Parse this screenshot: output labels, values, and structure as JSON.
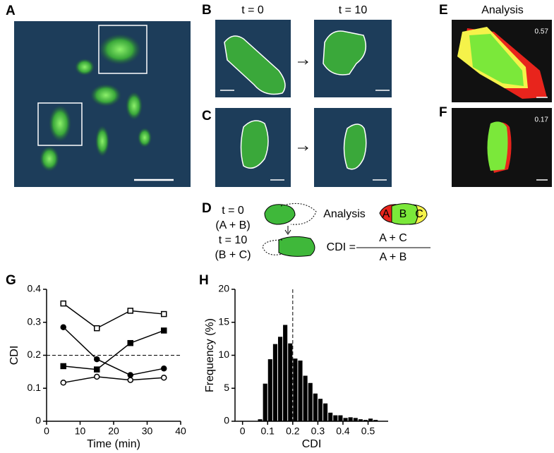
{
  "panel_labels": [
    "A",
    "B",
    "C",
    "D",
    "E",
    "F",
    "G",
    "H"
  ],
  "time_labels": [
    "t = 0",
    "t = 10"
  ],
  "analysis_title": "Analysis",
  "overlap_values": [
    0.57,
    0.17
  ],
  "diagram": {
    "t0": "t = 0",
    "ab": "(A + B)",
    "t10": "t = 10",
    "bc": "(B + C)",
    "analysis": "Analysis",
    "region_a": "A",
    "region_b": "B",
    "region_c": "C",
    "cdi": "CDI =",
    "numerator": "A + C",
    "denominator": "A + B"
  },
  "chart_data": [
    {
      "type": "line",
      "xlabel": "Time (min)",
      "ylabel": "CDI",
      "x": [
        5,
        15,
        25,
        35
      ],
      "series": [
        {
          "color": "#000000",
          "marker": "square",
          "filled": false,
          "values": [
            0.357,
            0.282,
            0.335,
            0.325
          ]
        },
        {
          "color": "#000000",
          "marker": "square",
          "filled": true,
          "values": [
            0.167,
            0.157,
            0.237,
            0.275
          ]
        },
        {
          "color": "#000000",
          "marker": "circle",
          "filled": true,
          "values": [
            0.285,
            0.188,
            0.14,
            0.16
          ]
        },
        {
          "color": "#000000",
          "marker": "circle",
          "filled": false,
          "values": [
            0.117,
            0.135,
            0.125,
            0.132
          ]
        }
      ],
      "hline": 0.2,
      "xlim": [
        0,
        40
      ],
      "xticks": [
        0,
        10,
        20,
        30,
        40
      ],
      "ylim": [
        0,
        0.4
      ],
      "yticks": [
        0,
        0.1,
        0.2,
        0.3,
        0.4
      ]
    },
    {
      "type": "histogram",
      "xlabel": "CDI",
      "ylabel": "Frequency (%)",
      "color": "#000000",
      "bins": [
        0.06,
        0.08,
        0.1,
        0.12,
        0.14,
        0.16,
        0.18,
        0.2,
        0.22,
        0.24,
        0.26,
        0.28,
        0.3,
        0.32,
        0.34,
        0.36,
        0.38,
        0.4,
        0.42,
        0.44,
        0.46,
        0.48,
        0.5,
        0.52,
        0.54
      ],
      "values": [
        0.3,
        5.7,
        9.4,
        11.7,
        12.8,
        14.6,
        11.8,
        9.5,
        9.2,
        6.9,
        5.8,
        4.2,
        3.4,
        2.7,
        1.3,
        0.9,
        0.9,
        0.5,
        0.6,
        0.5,
        0.3,
        0.2,
        0.4,
        0.2
      ],
      "vline": 0.2,
      "xlim": [
        -0.03,
        0.58
      ],
      "xticks": [
        0,
        0.1,
        0.2,
        0.3,
        0.4,
        0.5
      ],
      "ylim": [
        0,
        20
      ],
      "yticks": [
        0,
        5,
        10,
        15,
        20
      ]
    }
  ]
}
